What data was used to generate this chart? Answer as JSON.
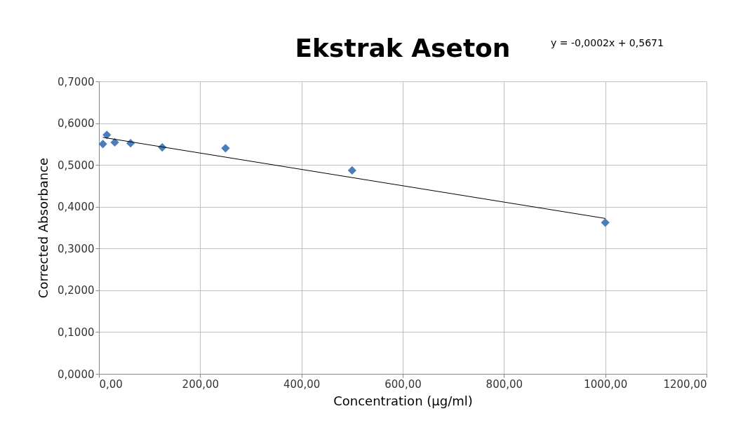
{
  "chart_data": {
    "type": "scatter",
    "title": "Ekstrak Aseton",
    "xlabel": "Concentration (µg/ml)",
    "ylabel": "Corrected Absorbance",
    "annotations": [
      "y = -0,0002x + 0,5671"
    ],
    "series": [
      {
        "color": "#4a7ebb",
        "marker": "diamond",
        "x": [
          7.8,
          15.6,
          31.25,
          62.5,
          125,
          250,
          500,
          1000
        ],
        "values": [
          0.55,
          0.572,
          0.554,
          0.552,
          0.542,
          0.54,
          0.487,
          0.362
        ]
      },
      {
        "type": "line",
        "color": "#000000",
        "marker": "none",
        "line_style": "solid",
        "x": [
          7.8,
          1000
        ],
        "values": [
          0.566,
          0.372
        ]
      }
    ],
    "xlim": [
      0,
      1200
    ],
    "xticks": [
      {
        "value": 0,
        "label": "0,00"
      },
      {
        "value": 200,
        "label": "200,00"
      },
      {
        "value": 400,
        "label": "400,00"
      },
      {
        "value": 600,
        "label": "600,00"
      },
      {
        "value": 800,
        "label": "800,00"
      },
      {
        "value": 1000,
        "label": "1000,00"
      },
      {
        "value": 1200,
        "label": "1200,00"
      }
    ],
    "ylim": [
      0,
      0.7
    ],
    "yticks": [
      {
        "value": 0,
        "label": "0,0000"
      },
      {
        "value": 0.1,
        "label": "0,1000"
      },
      {
        "value": 0.2,
        "label": "0,2000"
      },
      {
        "value": 0.3,
        "label": "0,3000"
      },
      {
        "value": 0.4,
        "label": "0,4000"
      },
      {
        "value": 0.5,
        "label": "0,5000"
      },
      {
        "value": 0.6,
        "label": "0,6000"
      },
      {
        "value": 0.7,
        "label": "0,7000"
      }
    ],
    "grid": true
  }
}
